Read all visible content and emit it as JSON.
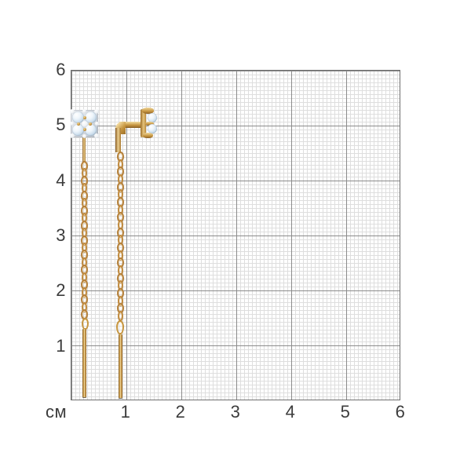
{
  "grid": {
    "unit_label": "см",
    "y_labels": [
      "6",
      "5",
      "4",
      "3",
      "2",
      "1"
    ],
    "x_labels": [
      "1",
      "2",
      "3",
      "4",
      "5",
      "6"
    ],
    "major_step_cm": 1
  },
  "product": {
    "item": "pair-of-gold-chain-threader-earrings-with-stone-cluster",
    "left_earring_view": "front",
    "right_earring_view": "side"
  },
  "colors": {
    "gold_light": "#f0d79a",
    "gold_mid": "#c6953f",
    "gold_dark": "#8a5f26",
    "stone_light": "#eef5fb",
    "stone_shadow": "#9db6c9",
    "setting_silver": "#dde2e8",
    "grid_minor": "#dedede",
    "grid_major": "#8c8c8c",
    "grid_border": "#6f6f6f",
    "label_text": "#3c3c3c"
  }
}
